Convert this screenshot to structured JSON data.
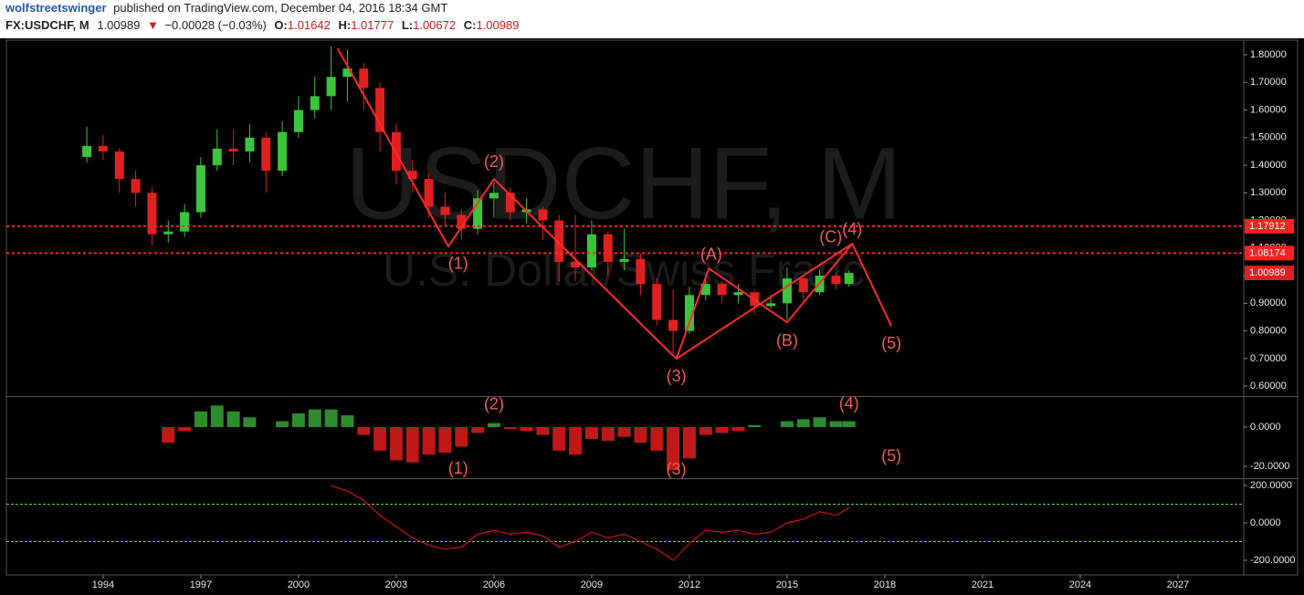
{
  "header": {
    "publisher": "wolfstreetswinger",
    "published_text": "published on TradingView.com, December 04, 2016 18:34 GMT",
    "symbol": "FX:USDCHF, M",
    "price": "1.00989",
    "arrow": "▼",
    "change": "−0.00028 (−0.03%)",
    "o_label": "O:",
    "o": "1.01642",
    "h_label": "H:",
    "h": "1.01777",
    "l_label": "L:",
    "l": "1.00672",
    "c_label": "C:",
    "c": "1.00989"
  },
  "chart_data": {
    "type": "candlestick",
    "title": "USDCHF, M",
    "subtitle": "U.S. Dollar/Swiss Franc",
    "x": [
      1993.5,
      1994,
      1994.5,
      1995,
      1995.5,
      1996,
      1996.5,
      1997,
      1997.5,
      1998,
      1998.5,
      1999,
      1999.5,
      2000,
      2000.5,
      2001,
      2001.5,
      2002,
      2002.5,
      2003,
      2003.5,
      2004,
      2004.5,
      2005,
      2005.5,
      2006,
      2006.5,
      2007,
      2007.5,
      2008,
      2008.5,
      2009,
      2009.5,
      2010,
      2010.5,
      2011,
      2011.5,
      2012,
      2012.5,
      2013,
      2013.5,
      2014,
      2014.5,
      2015,
      2015.5,
      2016,
      2016.5,
      2016.9
    ],
    "open": [
      1.43,
      1.47,
      1.45,
      1.35,
      1.3,
      1.15,
      1.16,
      1.23,
      1.4,
      1.46,
      1.45,
      1.5,
      1.38,
      1.52,
      1.6,
      1.65,
      1.72,
      1.75,
      1.68,
      1.52,
      1.38,
      1.35,
      1.25,
      1.22,
      1.17,
      1.28,
      1.3,
      1.23,
      1.24,
      1.2,
      1.05,
      1.03,
      1.15,
      1.05,
      1.06,
      0.97,
      0.84,
      0.8,
      0.93,
      0.97,
      0.93,
      0.94,
      0.89,
      0.9,
      0.99,
      0.94,
      1.0,
      0.97
    ],
    "high": [
      1.54,
      1.51,
      1.46,
      1.38,
      1.32,
      1.2,
      1.26,
      1.43,
      1.53,
      1.53,
      1.55,
      1.52,
      1.56,
      1.65,
      1.72,
      1.83,
      1.82,
      1.77,
      1.7,
      1.55,
      1.42,
      1.37,
      1.3,
      1.24,
      1.31,
      1.34,
      1.32,
      1.28,
      1.25,
      1.22,
      1.22,
      1.2,
      1.16,
      1.17,
      1.08,
      0.99,
      0.95,
      0.96,
      0.99,
      0.98,
      0.97,
      0.95,
      0.93,
      1.03,
      1.0,
      1.02,
      1.01,
      1.02
    ],
    "low": [
      1.41,
      1.42,
      1.3,
      1.25,
      1.11,
      1.12,
      1.14,
      1.21,
      1.38,
      1.4,
      1.41,
      1.3,
      1.36,
      1.5,
      1.57,
      1.6,
      1.63,
      1.6,
      1.45,
      1.33,
      1.3,
      1.21,
      1.18,
      1.13,
      1.15,
      1.21,
      1.2,
      1.19,
      1.13,
      0.98,
      0.98,
      1.02,
      1.0,
      1.02,
      0.93,
      0.82,
      0.71,
      0.79,
      0.91,
      0.9,
      0.9,
      0.86,
      0.88,
      0.84,
      0.91,
      0.93,
      0.95,
      0.96
    ],
    "close": [
      1.47,
      1.45,
      1.35,
      1.3,
      1.15,
      1.16,
      1.23,
      1.4,
      1.46,
      1.45,
      1.5,
      1.38,
      1.52,
      1.6,
      1.65,
      1.72,
      1.75,
      1.68,
      1.52,
      1.38,
      1.35,
      1.25,
      1.22,
      1.17,
      1.28,
      1.3,
      1.23,
      1.24,
      1.2,
      1.05,
      1.03,
      1.15,
      1.05,
      1.06,
      0.97,
      0.84,
      0.8,
      0.93,
      0.97,
      0.93,
      0.94,
      0.89,
      0.9,
      0.99,
      0.94,
      1.0,
      0.97,
      1.00989
    ],
    "up_color": "#3cc43c",
    "down_color": "#e02020",
    "xlim": [
      1991.03,
      2029.02
    ],
    "xticks": [
      1994,
      1997,
      2000,
      2003,
      2006,
      2009,
      2012,
      2015,
      2018,
      2021,
      2024,
      2027
    ],
    "ylim": [
      0.564,
      1.853
    ],
    "yticks": [
      {
        "value": 0.6,
        "label": "0.60000"
      },
      {
        "value": 0.7,
        "label": "0.70000"
      },
      {
        "value": 0.8,
        "label": "0.80000"
      },
      {
        "value": 0.9,
        "label": "0.90000"
      },
      {
        "value": 1.0,
        "label": "1.00000"
      },
      {
        "value": 1.1,
        "label": "1.10000"
      },
      {
        "value": 1.2,
        "label": "1.20000"
      },
      {
        "value": 1.3,
        "label": "1.30000"
      },
      {
        "value": 1.4,
        "label": "1.40000"
      },
      {
        "value": 1.5,
        "label": "1.50000"
      },
      {
        "value": 1.6,
        "label": "1.60000"
      },
      {
        "value": 1.7,
        "label": "1.70000"
      },
      {
        "value": 1.8,
        "label": "1.80000"
      }
    ],
    "price_lines": [
      1.17912,
      1.08174
    ],
    "level_color": "#ff2020",
    "last_price": 1.00989,
    "wave_color": "#ff2a2a",
    "waves": [
      {
        "x": [
          2001.2,
          2004.6,
          2006.0,
          2011.6,
          2017.0,
          2018.2
        ],
        "y": [
          1.823,
          1.106,
          1.35,
          0.699,
          1.116,
          0.818
        ]
      },
      {
        "x": [
          2011.6,
          2012.6,
          2015.0,
          2017.0
        ],
        "y": [
          0.699,
          1.026,
          0.831,
          1.116
        ]
      }
    ],
    "annotation_color": "#f25b5b",
    "annotations": [
      {
        "text": "(1)",
        "x": 2004.9,
        "y": 1.04
      },
      {
        "text": "(2)",
        "x": 2006.0,
        "y": 1.41
      },
      {
        "text": "(3)",
        "x": 2011.6,
        "y": 0.633
      },
      {
        "text": "(A)",
        "x": 2012.67,
        "y": 1.073
      },
      {
        "text": "(B)",
        "x": 2015.0,
        "y": 0.762
      },
      {
        "text": "(C)",
        "x": 2016.34,
        "y": 1.136
      },
      {
        "text": "(4)",
        "x": 2017.0,
        "y": 1.165
      },
      {
        "text": "(5)",
        "x": 2018.2,
        "y": 0.752
      }
    ],
    "oscillator": {
      "type": "bar",
      "pos_color": "#2e8b2e",
      "neg_color": "#c01818",
      "values": [
        null,
        null,
        null,
        null,
        null,
        -8,
        -2,
        8,
        11,
        8,
        5,
        0,
        3,
        7,
        9,
        9,
        6,
        -4,
        -12,
        -17,
        -18,
        -14,
        -13,
        -10,
        -3,
        2,
        -1,
        -2,
        -4,
        -12,
        -14,
        -6,
        -7,
        -5,
        -8,
        -12,
        -22,
        -16,
        -4,
        -3,
        -2,
        1,
        0,
        3,
        4,
        5,
        3,
        3
      ],
      "ylim": [
        -26.05,
        15.35
      ],
      "yticks": [
        {
          "value": 0,
          "label": "0.0000"
        },
        {
          "value": -20,
          "label": "-20.0000"
        }
      ],
      "annotations": [
        {
          "text": "(1)",
          "x": 2004.9,
          "y": -21.4
        },
        {
          "text": "(2)",
          "x": 2006.0,
          "y": 11.2
        },
        {
          "text": "(3)",
          "x": 2011.6,
          "y": -21.9
        },
        {
          "text": "(4)",
          "x": 2016.9,
          "y": 11.6
        },
        {
          "text": "(5)",
          "x": 2018.2,
          "y": -15.3
        }
      ]
    },
    "cci": {
      "type": "line",
      "color": "#d01010",
      "levels": [
        100,
        -100
      ],
      "level_color": "#7ccf3c",
      "values": [
        null,
        null,
        null,
        null,
        null,
        null,
        null,
        null,
        null,
        null,
        null,
        null,
        null,
        null,
        null,
        200,
        170,
        120,
        40,
        -20,
        -80,
        -120,
        -140,
        -130,
        -60,
        -40,
        -60,
        -50,
        -70,
        -130,
        -100,
        -50,
        -80,
        -60,
        -100,
        -140,
        -200,
        -110,
        -40,
        -50,
        -40,
        -60,
        -50,
        0,
        20,
        60,
        40,
        80
      ],
      "ylim": [
        -278,
        234
      ],
      "yticks": [
        {
          "value": 200,
          "label": "200.0000"
        },
        {
          "value": 0,
          "label": "0.0000"
        },
        {
          "value": -200,
          "label": "-200.0000"
        }
      ]
    }
  }
}
